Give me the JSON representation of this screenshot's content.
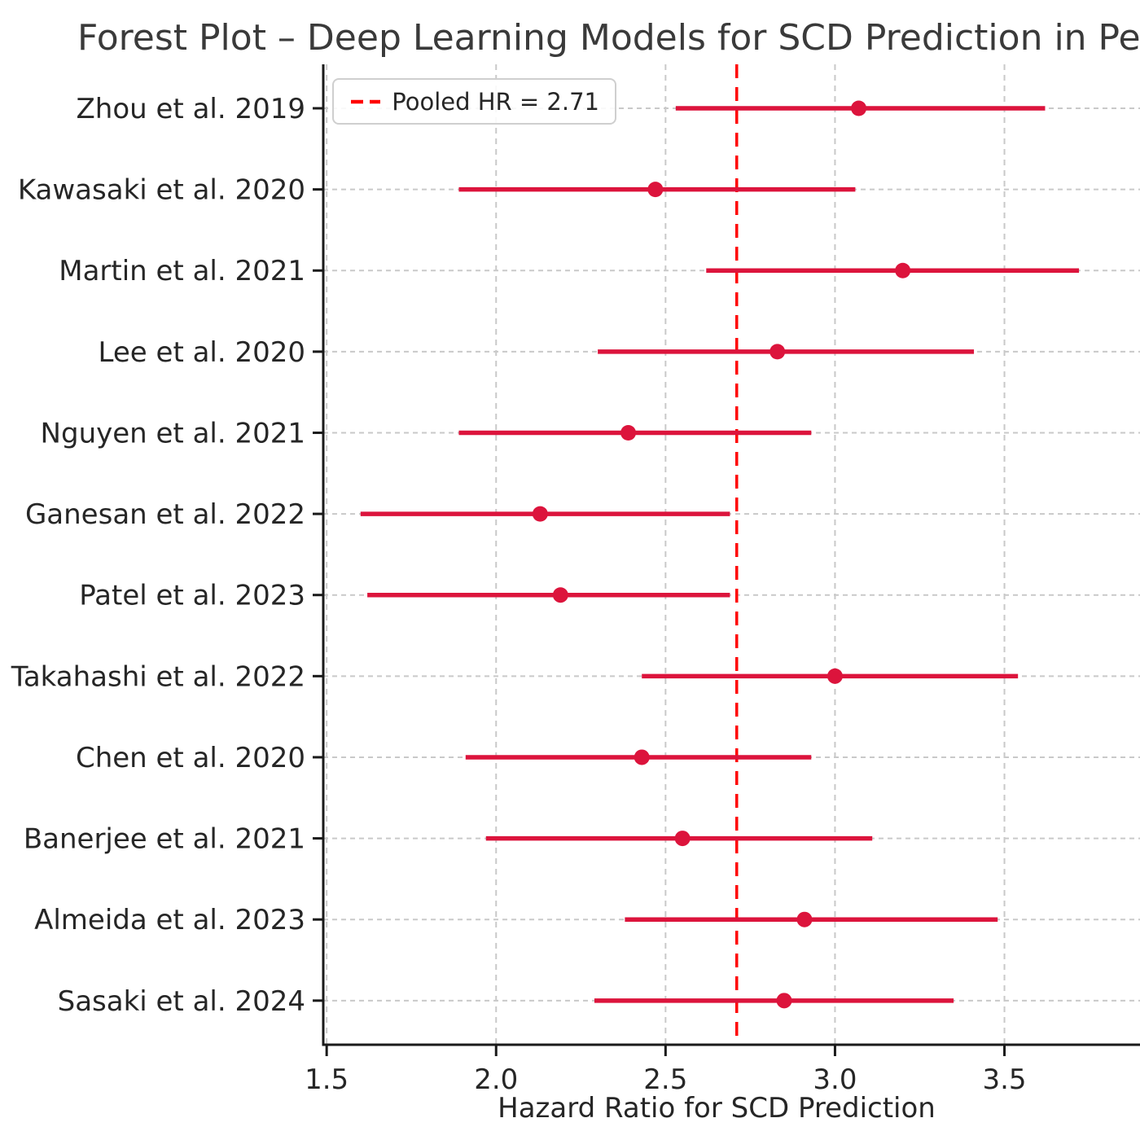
{
  "chart_data": {
    "type": "scatter",
    "variant": "forest-plot-with-error-bars",
    "title": "Forest Plot – Deep Learning Models for SCD Prediction in Pe",
    "title_note": "title is clipped at the right edge of the image",
    "xlabel": "Hazard Ratio for SCD Prediction",
    "x_ticks": [
      1.5,
      2.0,
      2.5,
      3.0,
      3.5
    ],
    "x_tick_labels": [
      "1.5",
      "2.0",
      "2.5",
      "3.0",
      "3.5"
    ],
    "xlim": [
      1.49,
      3.9
    ],
    "grid": true,
    "legend": {
      "label": "Pooled HR = 2.71",
      "position": "upper-left"
    },
    "pooled_hr": 2.71,
    "studies": [
      {
        "label": "Zhou et al. 2019",
        "hr": 3.07,
        "ci_low": 2.53,
        "ci_high": 3.62
      },
      {
        "label": "Kawasaki et al. 2020",
        "hr": 2.47,
        "ci_low": 1.89,
        "ci_high": 3.06
      },
      {
        "label": "Martin et al. 2021",
        "hr": 3.2,
        "ci_low": 2.62,
        "ci_high": 3.72
      },
      {
        "label": "Lee et al. 2020",
        "hr": 2.83,
        "ci_low": 2.3,
        "ci_high": 3.41
      },
      {
        "label": "Nguyen et al. 2021",
        "hr": 2.39,
        "ci_low": 1.89,
        "ci_high": 2.93
      },
      {
        "label": "Ganesan et al. 2022",
        "hr": 2.13,
        "ci_low": 1.6,
        "ci_high": 2.69
      },
      {
        "label": "Patel et al. 2023",
        "hr": 2.19,
        "ci_low": 1.62,
        "ci_high": 2.69
      },
      {
        "label": "Takahashi et al. 2022",
        "hr": 3.0,
        "ci_low": 2.43,
        "ci_high": 3.54
      },
      {
        "label": "Chen et al. 2020",
        "hr": 2.43,
        "ci_low": 1.91,
        "ci_high": 2.93
      },
      {
        "label": "Banerjee et al. 2021",
        "hr": 2.55,
        "ci_low": 1.97,
        "ci_high": 3.11
      },
      {
        "label": "Almeida et al. 2023",
        "hr": 2.91,
        "ci_low": 2.38,
        "ci_high": 3.48
      },
      {
        "label": "Sasaki et al. 2024",
        "hr": 2.85,
        "ci_low": 2.29,
        "ci_high": 3.35
      }
    ],
    "colors": {
      "point": "#DC143C",
      "ci_line": "#DC143C",
      "pooled_line": "#FF0000",
      "grid": "#c9c9c9",
      "axis": "#1a1a1a",
      "tick_text": "#262626",
      "title_text": "#3a3a3a"
    }
  }
}
